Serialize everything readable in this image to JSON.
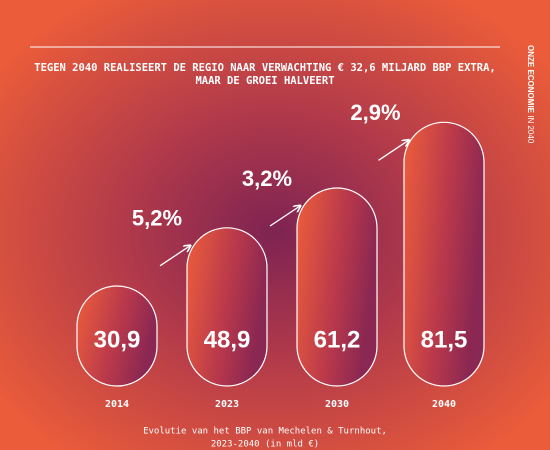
{
  "chart_data": {
    "type": "pill-bar",
    "title_lines": [
      "TEGEN 2040 REALISEERT DE REGIO NAAR VERWACHTING € 32,6 MILJARD BBP EXTRA,",
      "MAAR DE GROEI HALVEERT"
    ],
    "side_label": [
      "ONZE ECONOMIE",
      "IN 2040"
    ],
    "categories": [
      "2014",
      "2023",
      "2030",
      "2040"
    ],
    "values": [
      30.9,
      48.9,
      61.2,
      81.5
    ],
    "value_labels": [
      "30,9",
      "48,9",
      "61,2",
      "81,5"
    ],
    "growth": {
      "values": [
        5.2,
        3.2,
        2.9
      ],
      "value_labels": [
        "5,2%",
        "3,2%",
        "2,9%"
      ]
    },
    "ylim": [
      0,
      85
    ],
    "caption_lines": [
      "Evolutie van het BBP van Mechelen & Turnhout,",
      "2023-2040 (in mld €)"
    ]
  }
}
